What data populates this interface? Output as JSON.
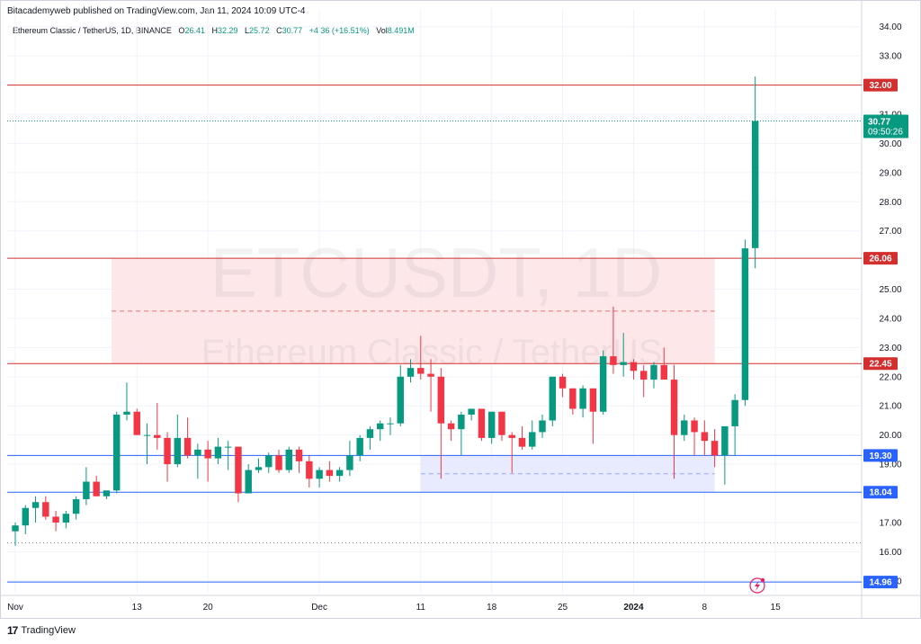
{
  "caption": "Bitacademyweb published on TradingView.com, Jan 11, 2024 10:09 UTC-4",
  "legend": {
    "symbol": "Ethereum Classic / TetherUS, 1D, BINANCE",
    "open_label": "O",
    "open": "26.41",
    "high_label": "H",
    "high": "32.29",
    "low_label": "L",
    "low": "25.72",
    "close_label": "C",
    "close": "30.77",
    "change": "+4.36 (+16.51%)",
    "vol_label": "Vol",
    "vol": "8.491M"
  },
  "watermark": {
    "line1": "ETCUSDT, 1D",
    "line2": "Ethereum Classic / TetherUS"
  },
  "brand": {
    "logo": "17",
    "name": "TradingView"
  },
  "colors": {
    "up": "#089981",
    "down": "#f23645",
    "level": "#d32f2f",
    "support": "#2962ff",
    "zone_red": "#fde3e5",
    "zone_blue": "#e3e8fd"
  },
  "chart_data": {
    "type": "candlestick",
    "title": "Ethereum Classic / TetherUS, 1D, BINANCE",
    "ylim": [
      14.5,
      34.3
    ],
    "y_ticks": [
      "34.00",
      "33.00",
      "31.00",
      "30.00",
      "29.00",
      "28.00",
      "27.00",
      "25.00",
      "24.00",
      "23.00",
      "22.00",
      "21.00",
      "20.00",
      "19.00",
      "17.00",
      "16.00",
      "15.00"
    ],
    "x_ticks": [
      {
        "label": "Nov",
        "i": 0
      },
      {
        "label": "13",
        "i": 12
      },
      {
        "label": "20",
        "i": 19
      },
      {
        "label": "Dec",
        "i": 30
      },
      {
        "label": "11",
        "i": 40
      },
      {
        "label": "18",
        "i": 47
      },
      {
        "label": "25",
        "i": 54
      },
      {
        "label": "2024",
        "i": 61
      },
      {
        "label": "8",
        "i": 68
      },
      {
        "label": "15",
        "i": 75
      }
    ],
    "x_range": [
      -0.8,
      83.5
    ],
    "levels": [
      {
        "label": "32.00",
        "value": 32.0,
        "kind": "resistance"
      },
      {
        "label": "26.06",
        "value": 26.06,
        "kind": "resistance"
      },
      {
        "label": "22.45",
        "value": 22.45,
        "kind": "resistance"
      },
      {
        "label": "19.30",
        "value": 19.3,
        "kind": "support"
      },
      {
        "label": "18.04",
        "value": 18.04,
        "kind": "support"
      },
      {
        "label": "14.96",
        "value": 14.96,
        "kind": "support"
      }
    ],
    "zones": [
      {
        "from_i": 9.5,
        "to_i": 69,
        "low": 22.45,
        "high": 26.06,
        "mid": 24.25,
        "color": "red"
      },
      {
        "from_i": 40,
        "to_i": 69,
        "low": 18.04,
        "high": 19.3,
        "mid": 18.67,
        "color": "blue"
      }
    ],
    "last_price": {
      "label": "30.77",
      "countdown": "09:50:26",
      "value": 30.77
    },
    "dotted_level": 16.3,
    "candles": [
      {
        "o": 16.7,
        "h": 17.0,
        "l": 16.2,
        "c": 16.9
      },
      {
        "o": 16.9,
        "h": 17.6,
        "l": 16.6,
        "c": 17.5
      },
      {
        "o": 17.5,
        "h": 17.9,
        "l": 17.0,
        "c": 17.7
      },
      {
        "o": 17.7,
        "h": 17.9,
        "l": 17.1,
        "c": 17.2
      },
      {
        "o": 17.2,
        "h": 17.4,
        "l": 16.7,
        "c": 17.0
      },
      {
        "o": 17.0,
        "h": 17.4,
        "l": 16.8,
        "c": 17.3
      },
      {
        "o": 17.3,
        "h": 17.9,
        "l": 17.1,
        "c": 17.8
      },
      {
        "o": 17.8,
        "h": 18.9,
        "l": 17.6,
        "c": 18.4
      },
      {
        "o": 18.4,
        "h": 18.6,
        "l": 17.9,
        "c": 17.9
      },
      {
        "o": 17.9,
        "h": 18.1,
        "l": 17.8,
        "c": 18.1
      },
      {
        "o": 18.1,
        "h": 20.8,
        "l": 18.0,
        "c": 20.7
      },
      {
        "o": 20.7,
        "h": 21.8,
        "l": 20.5,
        "c": 20.8
      },
      {
        "o": 20.8,
        "h": 20.9,
        "l": 20.0,
        "c": 20.0
      },
      {
        "o": 20.0,
        "h": 20.4,
        "l": 19.0,
        "c": 20.0
      },
      {
        "o": 20.0,
        "h": 21.1,
        "l": 19.5,
        "c": 19.9
      },
      {
        "o": 19.9,
        "h": 20.1,
        "l": 18.4,
        "c": 19.0
      },
      {
        "o": 19.0,
        "h": 20.7,
        "l": 18.9,
        "c": 19.9
      },
      {
        "o": 19.9,
        "h": 20.6,
        "l": 19.2,
        "c": 19.3
      },
      {
        "o": 19.3,
        "h": 19.7,
        "l": 18.5,
        "c": 19.5
      },
      {
        "o": 19.5,
        "h": 19.8,
        "l": 18.4,
        "c": 19.2
      },
      {
        "o": 19.2,
        "h": 19.9,
        "l": 19.0,
        "c": 19.6
      },
      {
        "o": 19.6,
        "h": 19.8,
        "l": 18.8,
        "c": 19.6
      },
      {
        "o": 19.6,
        "h": 19.6,
        "l": 17.7,
        "c": 18.0
      },
      {
        "o": 18.0,
        "h": 19.0,
        "l": 18.0,
        "c": 18.8
      },
      {
        "o": 18.8,
        "h": 19.2,
        "l": 18.7,
        "c": 18.9
      },
      {
        "o": 18.9,
        "h": 19.4,
        "l": 18.7,
        "c": 19.3
      },
      {
        "o": 19.3,
        "h": 19.5,
        "l": 18.7,
        "c": 18.8
      },
      {
        "o": 18.8,
        "h": 19.6,
        "l": 18.7,
        "c": 19.5
      },
      {
        "o": 19.5,
        "h": 19.6,
        "l": 18.7,
        "c": 19.1
      },
      {
        "o": 19.1,
        "h": 19.3,
        "l": 18.2,
        "c": 18.5
      },
      {
        "o": 18.5,
        "h": 18.9,
        "l": 18.2,
        "c": 18.8
      },
      {
        "o": 18.8,
        "h": 19.1,
        "l": 18.4,
        "c": 18.6
      },
      {
        "o": 18.6,
        "h": 18.9,
        "l": 18.4,
        "c": 18.8
      },
      {
        "o": 18.8,
        "h": 19.8,
        "l": 18.6,
        "c": 19.3
      },
      {
        "o": 19.3,
        "h": 20.0,
        "l": 19.1,
        "c": 19.9
      },
      {
        "o": 19.9,
        "h": 20.3,
        "l": 19.5,
        "c": 20.2
      },
      {
        "o": 20.2,
        "h": 20.5,
        "l": 19.8,
        "c": 20.4
      },
      {
        "o": 20.4,
        "h": 20.6,
        "l": 20.0,
        "c": 20.4
      },
      {
        "o": 20.4,
        "h": 22.4,
        "l": 20.3,
        "c": 22.0
      },
      {
        "o": 22.0,
        "h": 22.6,
        "l": 21.8,
        "c": 22.3
      },
      {
        "o": 22.3,
        "h": 23.4,
        "l": 21.9,
        "c": 22.1
      },
      {
        "o": 22.1,
        "h": 22.6,
        "l": 20.8,
        "c": 22.0
      },
      {
        "o": 22.0,
        "h": 22.3,
        "l": 18.5,
        "c": 20.4
      },
      {
        "o": 20.4,
        "h": 20.5,
        "l": 19.8,
        "c": 20.2
      },
      {
        "o": 20.2,
        "h": 20.8,
        "l": 19.3,
        "c": 20.7
      },
      {
        "o": 20.7,
        "h": 20.9,
        "l": 20.5,
        "c": 20.9
      },
      {
        "o": 20.9,
        "h": 20.9,
        "l": 19.8,
        "c": 19.9
      },
      {
        "o": 19.9,
        "h": 20.8,
        "l": 19.7,
        "c": 20.8
      },
      {
        "o": 20.8,
        "h": 20.8,
        "l": 19.8,
        "c": 20.0
      },
      {
        "o": 20.0,
        "h": 20.1,
        "l": 18.7,
        "c": 19.9
      },
      {
        "o": 19.9,
        "h": 20.3,
        "l": 19.5,
        "c": 19.6
      },
      {
        "o": 19.6,
        "h": 20.5,
        "l": 19.5,
        "c": 20.1
      },
      {
        "o": 20.1,
        "h": 20.7,
        "l": 19.9,
        "c": 20.5
      },
      {
        "o": 20.5,
        "h": 22.0,
        "l": 20.3,
        "c": 22.0
      },
      {
        "o": 22.0,
        "h": 22.1,
        "l": 21.3,
        "c": 21.6
      },
      {
        "o": 21.6,
        "h": 21.6,
        "l": 20.7,
        "c": 20.9
      },
      {
        "o": 20.9,
        "h": 21.7,
        "l": 20.6,
        "c": 21.6
      },
      {
        "o": 21.6,
        "h": 21.6,
        "l": 19.7,
        "c": 20.8
      },
      {
        "o": 20.8,
        "h": 22.9,
        "l": 20.7,
        "c": 22.7
      },
      {
        "o": 22.7,
        "h": 24.4,
        "l": 22.1,
        "c": 22.4
      },
      {
        "o": 22.4,
        "h": 23.5,
        "l": 22.0,
        "c": 22.5
      },
      {
        "o": 22.5,
        "h": 22.6,
        "l": 21.9,
        "c": 22.2
      },
      {
        "o": 22.2,
        "h": 22.4,
        "l": 21.3,
        "c": 21.9
      },
      {
        "o": 21.9,
        "h": 22.5,
        "l": 21.6,
        "c": 22.4
      },
      {
        "o": 22.4,
        "h": 23.0,
        "l": 21.9,
        "c": 21.9
      },
      {
        "o": 21.9,
        "h": 22.4,
        "l": 18.5,
        "c": 20.0
      },
      {
        "o": 20.0,
        "h": 20.7,
        "l": 19.8,
        "c": 20.5
      },
      {
        "o": 20.5,
        "h": 20.6,
        "l": 19.3,
        "c": 20.1
      },
      {
        "o": 20.1,
        "h": 20.5,
        "l": 19.3,
        "c": 19.8
      },
      {
        "o": 19.8,
        "h": 20.2,
        "l": 18.9,
        "c": 19.3
      },
      {
        "o": 19.3,
        "h": 20.3,
        "l": 18.3,
        "c": 20.3
      },
      {
        "o": 20.3,
        "h": 21.4,
        "l": 19.3,
        "c": 21.2
      },
      {
        "o": 21.2,
        "h": 26.7,
        "l": 21.0,
        "c": 26.4
      },
      {
        "o": 26.41,
        "h": 32.29,
        "l": 25.72,
        "c": 30.77
      }
    ]
  }
}
